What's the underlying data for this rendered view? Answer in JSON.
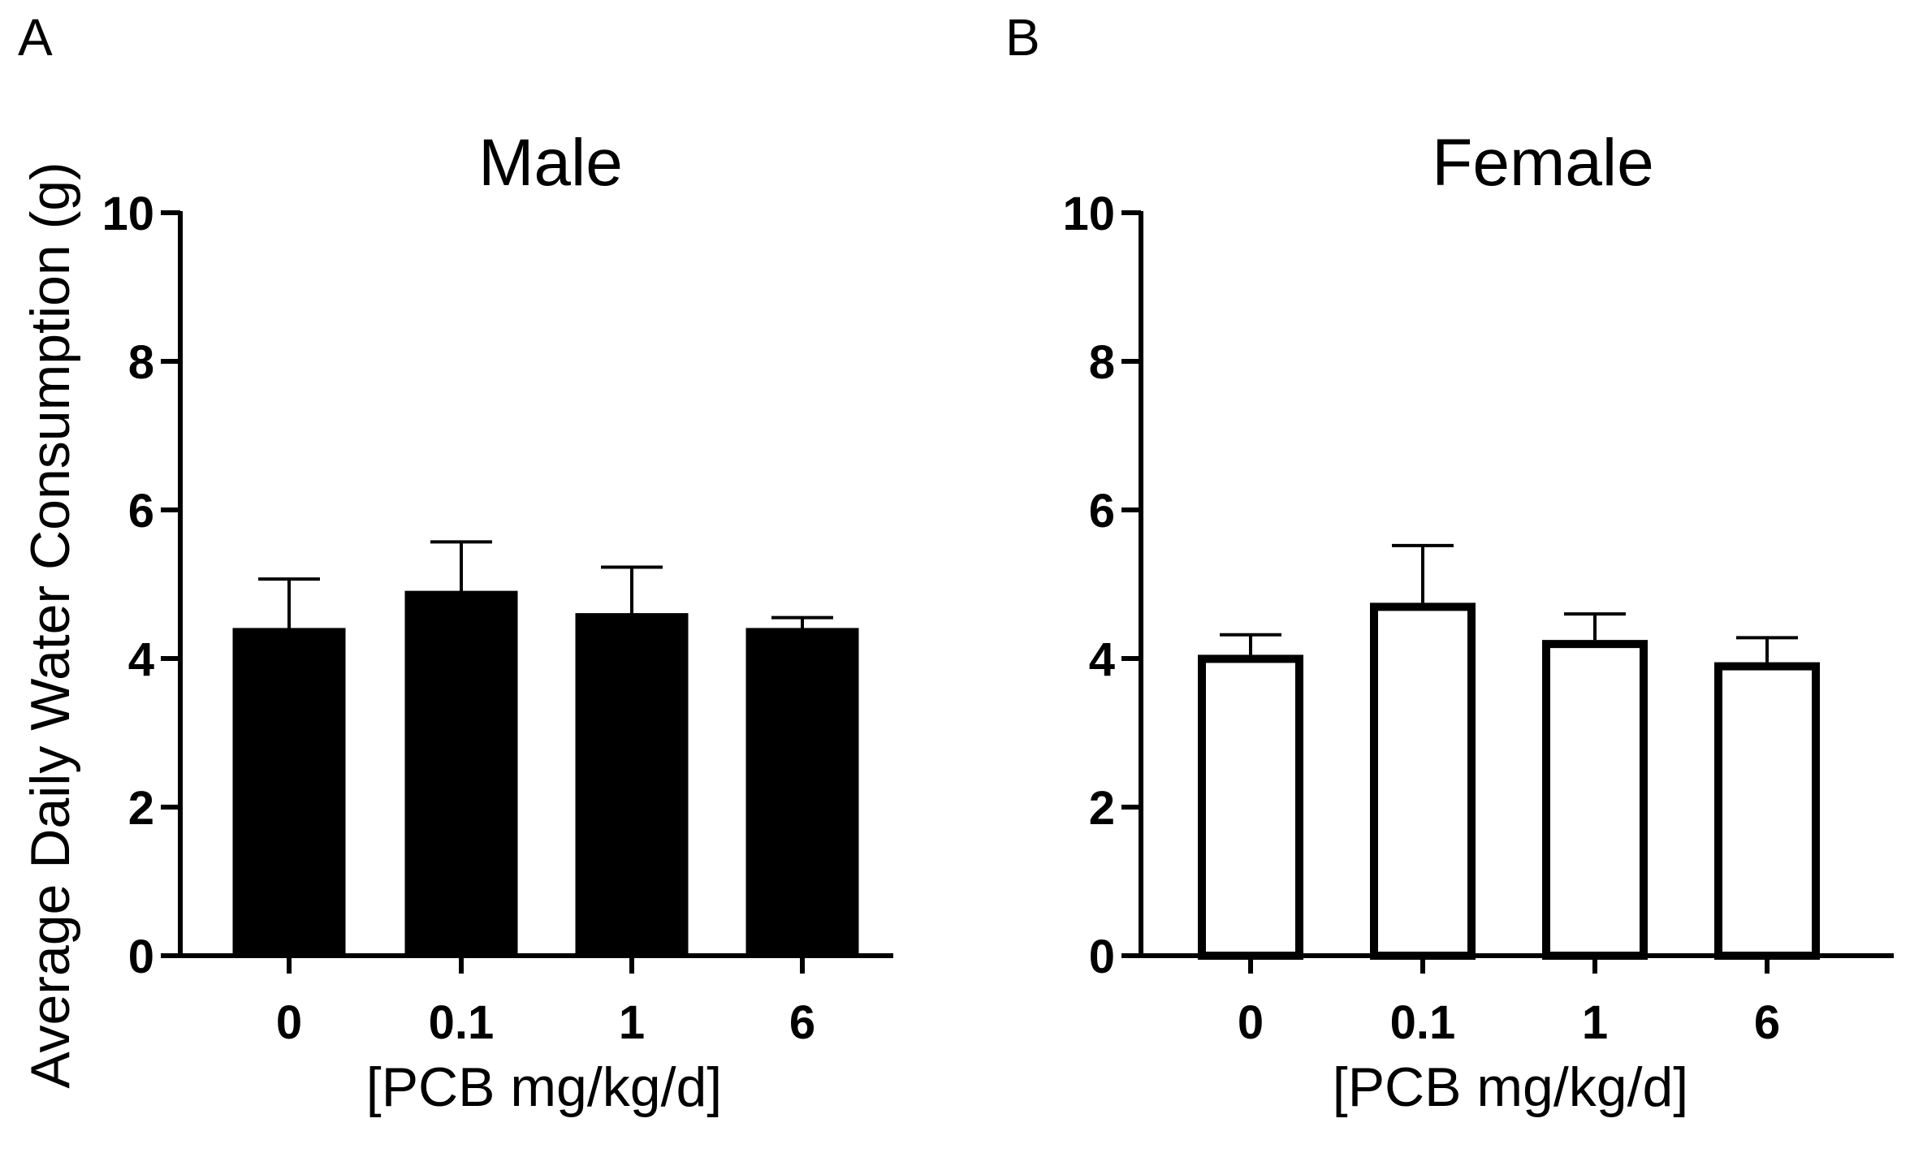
{
  "figure": {
    "ylabel": "Average Daily Water Consumption (g)",
    "panels": [
      {
        "letter": "A"
      },
      {
        "letter": "B"
      }
    ]
  },
  "chart_data": [
    {
      "type": "bar",
      "panel": "A",
      "title": "Male",
      "xlabel": "[PCB mg/kg/d]",
      "ylabel": "Average Daily Water Consumption (g)",
      "categories": [
        "0",
        "0.1",
        "1",
        "6"
      ],
      "values": [
        4.4,
        4.9,
        4.6,
        4.4
      ],
      "error_upper": [
        0.67,
        0.67,
        0.63,
        0.15
      ],
      "ylim": [
        0,
        10
      ],
      "yticks": [
        0,
        2,
        4,
        6,
        8,
        10
      ],
      "bar_fill": "#000000",
      "bar_edge": "#000000"
    },
    {
      "type": "bar",
      "panel": "B",
      "title": "Female",
      "xlabel": "[PCB mg/kg/d]",
      "ylabel": "",
      "categories": [
        "0",
        "0.1",
        "1",
        "6"
      ],
      "values": [
        4.05,
        4.75,
        4.25,
        3.95
      ],
      "error_upper": [
        0.27,
        0.77,
        0.35,
        0.33
      ],
      "ylim": [
        0,
        10
      ],
      "yticks": [
        0,
        2,
        4,
        6,
        8,
        10
      ],
      "bar_fill": "#ffffff",
      "bar_edge": "#000000"
    }
  ]
}
